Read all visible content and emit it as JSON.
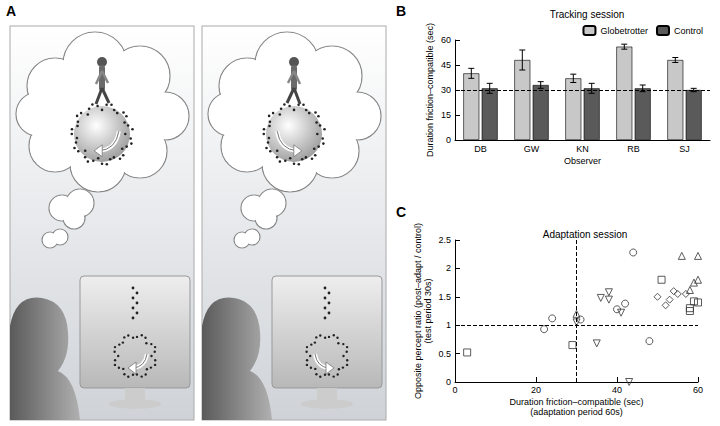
{
  "figure": {
    "panel_label": "A"
  },
  "chart_data": [
    {
      "type": "bar",
      "panel_label": "B",
      "title": "Tracking session",
      "x_label": "Observer",
      "y_label": "Duration friction–compatible (sec)",
      "categories": [
        "DB",
        "GW",
        "KN",
        "RB",
        "SJ"
      ],
      "series": [
        {
          "name": "Globetrotter",
          "color": "#c8c8c8",
          "values": [
            40,
            48,
            37,
            56,
            48
          ],
          "errors": [
            3,
            6,
            2.5,
            1.5,
            1.5
          ]
        },
        {
          "name": "Control",
          "color": "#5a5a5a",
          "values": [
            31,
            33,
            31,
            31,
            30
          ],
          "errors": [
            3,
            2,
            3,
            2,
            1
          ]
        }
      ],
      "ylim": [
        0,
        60
      ],
      "yticks": [
        0,
        15,
        30,
        45,
        60
      ],
      "reference_lines": [
        {
          "y": 30,
          "line_style": "dashed"
        }
      ],
      "legend": "upper right"
    },
    {
      "type": "scatter",
      "panel_label": "C",
      "title": "Adaptation session",
      "x_label": "Duration friction–compatible (sec)\n(adaptation period 60s)",
      "y_label": "Opposite percept ratio (post–adapt / control)\n(test period 30s)",
      "xlim": [
        0,
        60
      ],
      "xticks": [
        0,
        20,
        40,
        60
      ],
      "ylim": [
        0,
        2.5
      ],
      "yticks": [
        0,
        0.5,
        1,
        1.5,
        2,
        2.5
      ],
      "reference_lines": [
        {
          "x": 30,
          "line_style": "dashed"
        },
        {
          "y": 1,
          "line_style": "dashed"
        }
      ],
      "series": [
        {
          "marker": "circle",
          "color": "#333333",
          "values": [
            [
              22,
              0.93
            ],
            [
              24,
              1.12
            ],
            [
              31,
              1.1
            ],
            [
              40,
              1.28
            ],
            [
              42,
              1.38
            ],
            [
              44,
              2.28
            ],
            [
              48,
              0.72
            ]
          ]
        },
        {
          "marker": "square",
          "color": "#333333",
          "values": [
            [
              3,
              0.52
            ],
            [
              29,
              0.65
            ],
            [
              51,
              1.8
            ],
            [
              58,
              1.3
            ],
            [
              58,
              1.25
            ],
            [
              59,
              1.42
            ],
            [
              60,
              1.4
            ]
          ]
        },
        {
          "marker": "triangle_up",
          "color": "#333333",
          "values": [
            [
              30,
              1.2
            ],
            [
              56,
              2.22
            ],
            [
              58,
              1.62
            ],
            [
              59,
              1.75
            ],
            [
              60,
              1.8
            ],
            [
              60,
              2.22
            ]
          ]
        },
        {
          "marker": "triangle_down",
          "color": "#333333",
          "values": [
            [
              30,
              1.05
            ],
            [
              35,
              0.68
            ],
            [
              36,
              1.48
            ],
            [
              38,
              1.45
            ],
            [
              38,
              1.58
            ],
            [
              41,
              1.22
            ],
            [
              43,
              0
            ]
          ]
        },
        {
          "marker": "diamond",
          "color": "#333333",
          "values": [
            [
              50,
              1.5
            ],
            [
              52,
              1.35
            ],
            [
              53,
              1.45
            ],
            [
              54,
              1.6
            ],
            [
              55,
              1.55
            ],
            [
              57,
              1.55
            ]
          ]
        }
      ]
    }
  ]
}
